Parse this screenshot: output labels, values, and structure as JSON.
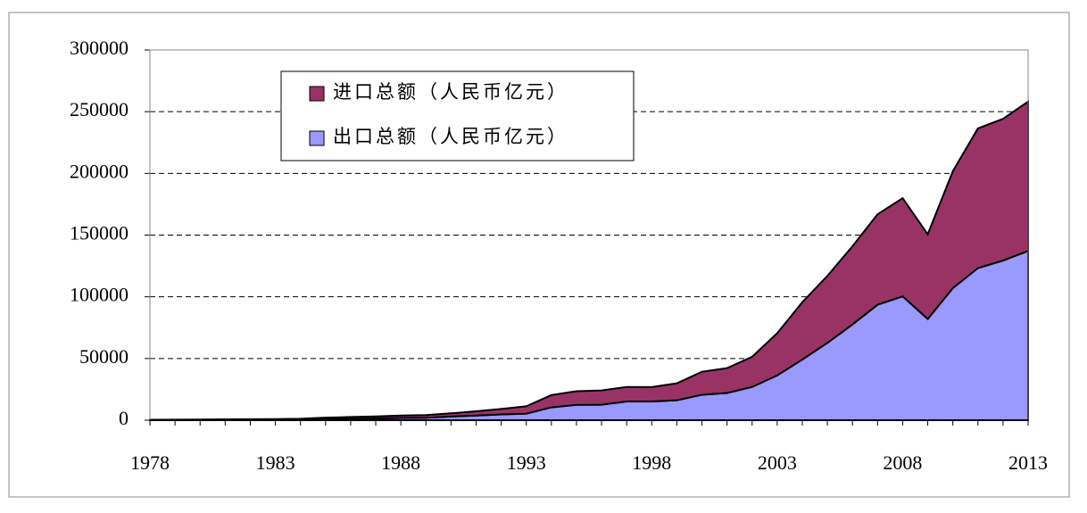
{
  "chart_data": {
    "type": "area",
    "stacked": true,
    "categories": [
      "1978",
      null,
      null,
      null,
      null,
      "1983",
      null,
      null,
      null,
      null,
      "1988",
      null,
      null,
      null,
      null,
      "1993",
      null,
      null,
      null,
      null,
      "1998",
      null,
      null,
      null,
      null,
      "2003",
      null,
      null,
      null,
      null,
      "2008",
      null,
      null,
      null,
      null,
      "2013"
    ],
    "series": [
      {
        "name": "进口总额（人民币亿元）",
        "color": "#993366",
        "values": [
          187,
          243,
          299,
          368,
          358,
          422,
          620,
          1258,
          1498,
          1614,
          2055,
          2200,
          2574,
          3399,
          4443,
          5986,
          9960,
          11048,
          11557,
          11807,
          11626,
          13736,
          18639,
          20159,
          24430,
          34196,
          46436,
          54274,
          63377,
          73285,
          79527,
          68618,
          94700,
          113161,
          114801,
          121037
        ]
      },
      {
        "name": "出口总额（人民币亿元）",
        "color": "#9999ff",
        "values": [
          168,
          212,
          272,
          368,
          414,
          438,
          581,
          809,
          1082,
          1470,
          1767,
          1956,
          2986,
          3827,
          4676,
          5285,
          10422,
          12452,
          12576,
          15161,
          15224,
          16160,
          20634,
          22024,
          26948,
          36288,
          49103,
          62648,
          77598,
          93563,
          100395,
          82030,
          107023,
          123241,
          129359,
          137131
        ]
      }
    ],
    "ylim": [
      0,
      300000
    ],
    "yticks": [
      0,
      50000,
      100000,
      150000,
      200000,
      250000,
      300000
    ],
    "grid": true
  }
}
